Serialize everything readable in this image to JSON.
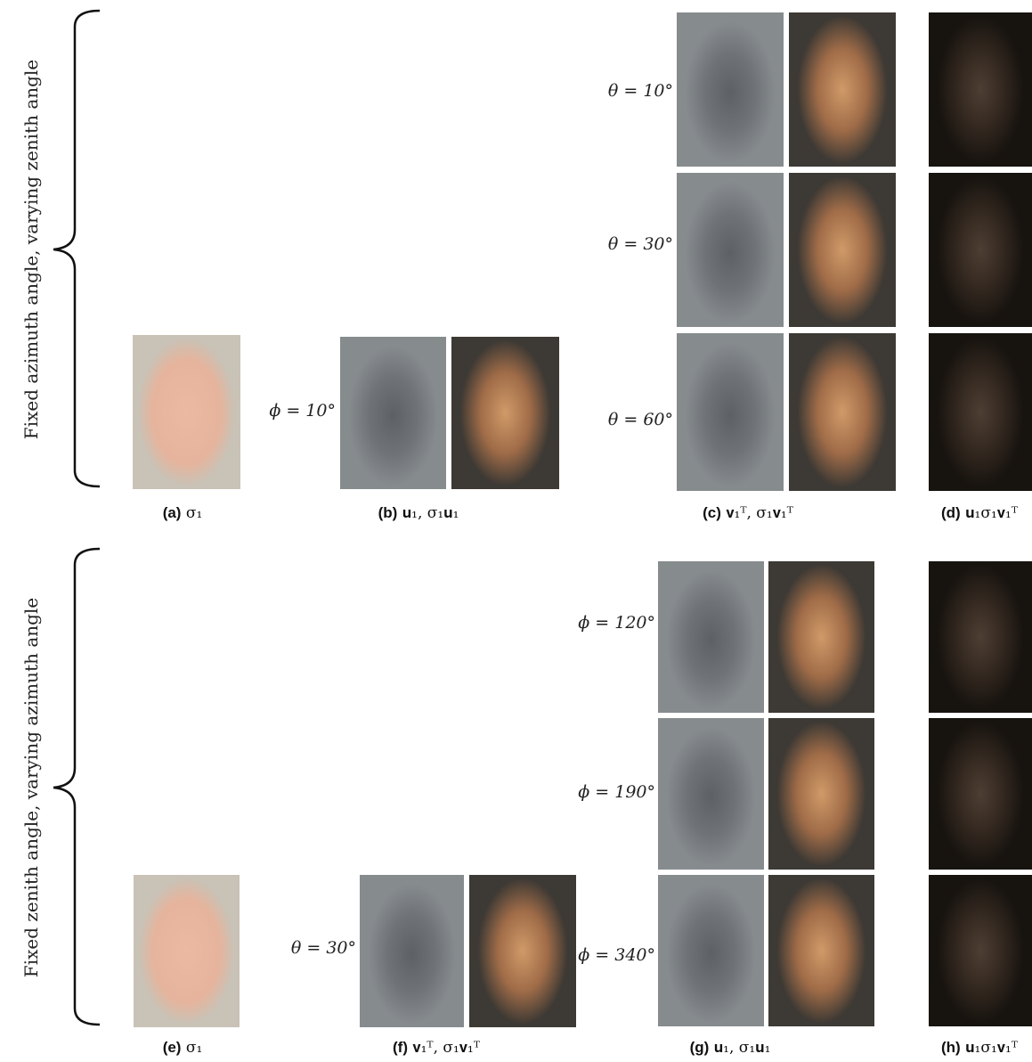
{
  "top_panel": {
    "side_label": "Fixed azimuth angle, varying zenith angle",
    "fixed_angle_label": "ϕ = 10°",
    "row_labels": [
      "θ = 10°",
      "θ = 30°",
      "θ = 60°"
    ],
    "captions": [
      {
        "tag": "(a)",
        "math": "σ₁"
      },
      {
        "tag": "(b)",
        "math": "𝐮₁, σ₁𝐮₁"
      },
      {
        "tag": "(c)",
        "math": "𝐯₁ᵀ, σ₁𝐯₁ᵀ"
      },
      {
        "tag": "(d)",
        "math": "𝐮₁σ₁𝐯₁ᵀ"
      }
    ]
  },
  "bottom_panel": {
    "side_label": "Fixed zenith angle, varying azimuth angle",
    "fixed_angle_label": "θ = 30°",
    "row_labels": [
      "ϕ = 120°",
      "ϕ = 190°",
      "ϕ = 340°"
    ],
    "captions": [
      {
        "tag": "(e)",
        "math": "σ₁"
      },
      {
        "tag": "(f)",
        "math": "𝐯₁ᵀ, σ₁𝐯₁ᵀ"
      },
      {
        "tag": "(g)",
        "math": "𝐮₁, σ₁𝐮₁"
      },
      {
        "tag": "(h)",
        "math": "𝐮₁σ₁𝐯₁ᵀ"
      }
    ]
  }
}
